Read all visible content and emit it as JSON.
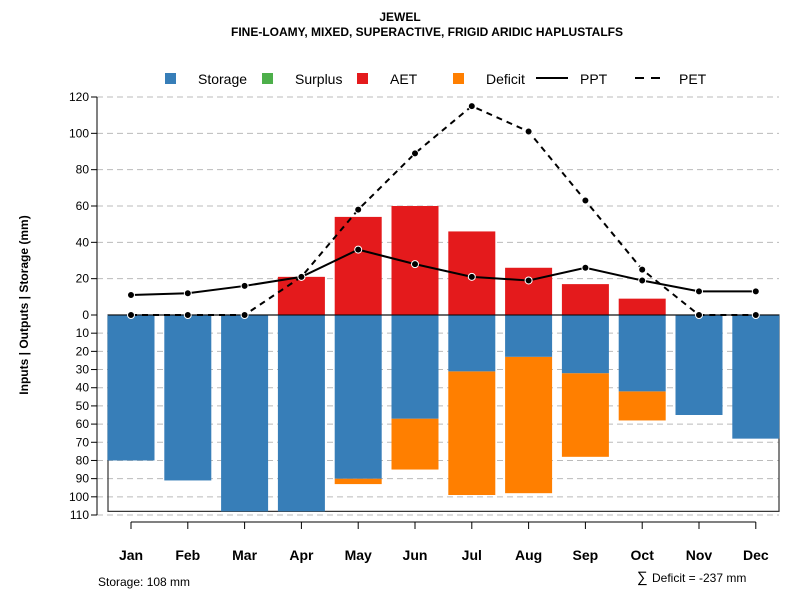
{
  "chart_data": {
    "type": "bar",
    "title": "JEWEL",
    "subtitle": "FINE-LOAMY, MIXED, SUPERACTIVE, FRIGID ARIDIC HAPLUSTALFS",
    "ylabel": "Inputs | Outputs | Storage    (mm)",
    "categories": [
      "Jan",
      "Feb",
      "Mar",
      "Apr",
      "May",
      "Jun",
      "Jul",
      "Aug",
      "Sep",
      "Oct",
      "Nov",
      "Dec"
    ],
    "upper_ylim": [
      0,
      120
    ],
    "upper_ticks": [
      0,
      20,
      40,
      60,
      80,
      100,
      120
    ],
    "lower_ylim": [
      0,
      110
    ],
    "lower_ticks": [
      0,
      10,
      20,
      30,
      40,
      50,
      60,
      70,
      80,
      90,
      100,
      110
    ],
    "legend": [
      {
        "name": "Storage",
        "kind": "box",
        "color": "#377EB8"
      },
      {
        "name": "Surplus",
        "kind": "box",
        "color": "#4DAF4A"
      },
      {
        "name": "AET",
        "kind": "box",
        "color": "#E41A1C"
      },
      {
        "name": "Deficit",
        "kind": "box",
        "color": "#FF7F00"
      },
      {
        "name": "PPT",
        "kind": "solid",
        "color": "#000000"
      },
      {
        "name": "PET",
        "kind": "dashed",
        "color": "#000000"
      }
    ],
    "legend_position": "top",
    "series": [
      {
        "name": "Storage",
        "values": [
          80,
          91,
          108,
          108,
          90,
          57,
          31,
          23,
          32,
          42,
          55,
          68
        ]
      },
      {
        "name": "Surplus",
        "values": [
          0,
          0,
          0,
          0,
          0,
          0,
          0,
          0,
          0,
          0,
          0,
          0
        ]
      },
      {
        "name": "AET",
        "values": [
          0,
          0,
          0,
          21,
          54,
          60,
          46,
          26,
          17,
          9,
          0,
          0
        ]
      },
      {
        "name": "Deficit",
        "values": [
          0,
          0,
          0,
          0,
          3,
          28,
          68,
          75,
          46,
          16,
          0,
          0
        ]
      },
      {
        "name": "PPT",
        "values": [
          11,
          12,
          16,
          21,
          36,
          28,
          21,
          19,
          26,
          19,
          13,
          13
        ]
      },
      {
        "name": "PET",
        "values": [
          0,
          0,
          0,
          21,
          58,
          89,
          115,
          101,
          63,
          25,
          0,
          0
        ]
      }
    ],
    "storage_capacity": 108,
    "annotations": {
      "storage": "Storage: 108 mm",
      "deficit": "Deficit = -237 mm",
      "sum_symbol": "∑"
    }
  }
}
